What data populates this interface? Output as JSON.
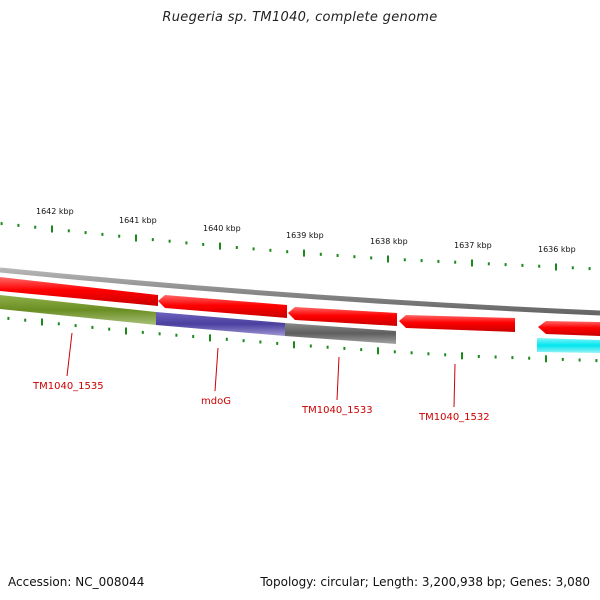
{
  "title": "Ruegeria sp. TM1040, complete genome",
  "footer": {
    "accession": "Accession: NC_008044",
    "summary": "Topology: circular; Length: 3,200,938 bp; Genes: 3,080"
  },
  "axis": {
    "unit": "kbp",
    "major_ticks": [
      {
        "kbp": 1642,
        "label": "1642 kbp"
      },
      {
        "kbp": 1641,
        "label": "1641 kbp"
      },
      {
        "kbp": 1640,
        "label": "1640 kbp"
      },
      {
        "kbp": 1639,
        "label": "1639 kbp"
      },
      {
        "kbp": 1638,
        "label": "1638 kbp"
      },
      {
        "kbp": 1637,
        "label": "1637 kbp"
      },
      {
        "kbp": 1636,
        "label": "1636 kbp"
      }
    ]
  },
  "gene_labels": [
    {
      "id": "TM1040_1535",
      "text": "TM1040_1535"
    },
    {
      "id": "mdoG",
      "text": "mdoG"
    },
    {
      "id": "TM1040_1533",
      "text": "TM1040_1533"
    },
    {
      "id": "TM1040_1532",
      "text": "TM1040_1532"
    }
  ],
  "colors": {
    "forward_strand": "#ff0000",
    "backbone": "#888888",
    "tick": "#1a8a1a",
    "label": "#cc0000",
    "cog_green": "#6b8e23",
    "cog_blue": "#4b3f9f",
    "cog_gray": "#666666",
    "cog_cyan": "#00e5ee"
  }
}
